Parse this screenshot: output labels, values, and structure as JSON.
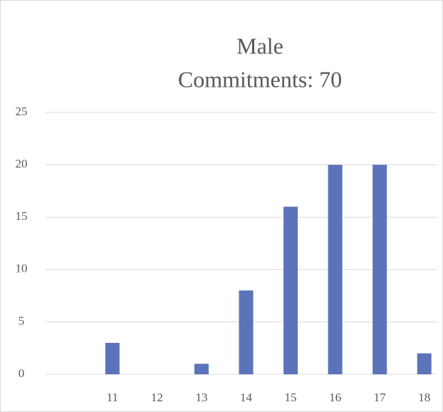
{
  "chart_data": {
    "type": "bar",
    "title": "Male",
    "subtitle": "Commitments: 70",
    "categories": [
      null,
      "11",
      "12",
      "13",
      "14",
      "15",
      "16",
      "17",
      "18"
    ],
    "values": [
      null,
      3,
      0,
      1,
      8,
      16,
      20,
      20,
      2
    ],
    "color": "#5b73b8",
    "ylim": [
      0,
      25
    ],
    "yticks": [
      0,
      5,
      10,
      15,
      20,
      25
    ],
    "grid": true
  }
}
